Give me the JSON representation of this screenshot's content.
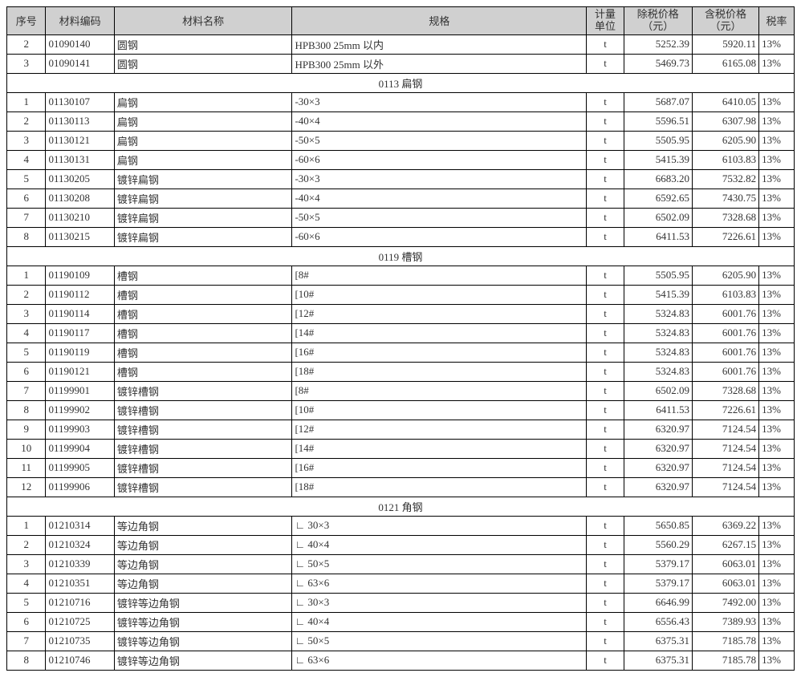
{
  "headers": {
    "seq": "序号",
    "code": "材料编码",
    "name": "材料名称",
    "spec": "规格",
    "unit_l1": "计量",
    "unit_l2": "单位",
    "price1_l1": "除税价格",
    "price1_l2": "（元）",
    "price2_l1": "含税价格",
    "price2_l2": "（元）",
    "tax": "税率"
  },
  "top_rows": [
    {
      "seq": "2",
      "code": "01090140",
      "name": "圆钢",
      "spec": "HPB300   25mm  以内",
      "unit": "t",
      "p1": "5252.39",
      "p2": "5920.11",
      "tax": "13%"
    },
    {
      "seq": "3",
      "code": "01090141",
      "name": "圆钢",
      "spec": "HPB300   25mm  以外",
      "unit": "t",
      "p1": "5469.73",
      "p2": "6165.08",
      "tax": "13%"
    }
  ],
  "sections": [
    {
      "title": "0113 扁钢",
      "rows": [
        {
          "seq": "1",
          "code": "01130107",
          "name": "扁钢",
          "spec": "-30×3",
          "unit": "t",
          "p1": "5687.07",
          "p2": "6410.05",
          "tax": "13%"
        },
        {
          "seq": "2",
          "code": "01130113",
          "name": "扁钢",
          "spec": "-40×4",
          "unit": "t",
          "p1": "5596.51",
          "p2": "6307.98",
          "tax": "13%"
        },
        {
          "seq": "3",
          "code": "01130121",
          "name": "扁钢",
          "spec": "-50×5",
          "unit": "t",
          "p1": "5505.95",
          "p2": "6205.90",
          "tax": "13%"
        },
        {
          "seq": "4",
          "code": "01130131",
          "name": "扁钢",
          "spec": "-60×6",
          "unit": "t",
          "p1": "5415.39",
          "p2": "6103.83",
          "tax": "13%"
        },
        {
          "seq": "5",
          "code": "01130205",
          "name": "镀锌扁钢",
          "spec": "-30×3",
          "unit": "t",
          "p1": "6683.20",
          "p2": "7532.82",
          "tax": "13%"
        },
        {
          "seq": "6",
          "code": "01130208",
          "name": "镀锌扁钢",
          "spec": "-40×4",
          "unit": "t",
          "p1": "6592.65",
          "p2": "7430.75",
          "tax": "13%"
        },
        {
          "seq": "7",
          "code": "01130210",
          "name": "镀锌扁钢",
          "spec": "-50×5",
          "unit": "t",
          "p1": "6502.09",
          "p2": "7328.68",
          "tax": "13%"
        },
        {
          "seq": "8",
          "code": "01130215",
          "name": "镀锌扁钢",
          "spec": "-60×6",
          "unit": "t",
          "p1": "6411.53",
          "p2": "7226.61",
          "tax": "13%"
        }
      ]
    },
    {
      "title": "0119 槽钢",
      "rows": [
        {
          "seq": "1",
          "code": "01190109",
          "name": "槽钢",
          "spec": "[8#",
          "unit": "t",
          "p1": "5505.95",
          "p2": "6205.90",
          "tax": "13%"
        },
        {
          "seq": "2",
          "code": "01190112",
          "name": "槽钢",
          "spec": "[10#",
          "unit": "t",
          "p1": "5415.39",
          "p2": "6103.83",
          "tax": "13%"
        },
        {
          "seq": "3",
          "code": "01190114",
          "name": "槽钢",
          "spec": "[12#",
          "unit": "t",
          "p1": "5324.83",
          "p2": "6001.76",
          "tax": "13%"
        },
        {
          "seq": "4",
          "code": "01190117",
          "name": "槽钢",
          "spec": "[14#",
          "unit": "t",
          "p1": "5324.83",
          "p2": "6001.76",
          "tax": "13%"
        },
        {
          "seq": "5",
          "code": "01190119",
          "name": "槽钢",
          "spec": "[16#",
          "unit": "t",
          "p1": "5324.83",
          "p2": "6001.76",
          "tax": "13%"
        },
        {
          "seq": "6",
          "code": "01190121",
          "name": "槽钢",
          "spec": "[18#",
          "unit": "t",
          "p1": "5324.83",
          "p2": "6001.76",
          "tax": "13%"
        },
        {
          "seq": "7",
          "code": "01199901",
          "name": "镀锌槽钢",
          "spec": "[8#",
          "unit": "t",
          "p1": "6502.09",
          "p2": "7328.68",
          "tax": "13%"
        },
        {
          "seq": "8",
          "code": "01199902",
          "name": "镀锌槽钢",
          "spec": "[10#",
          "unit": "t",
          "p1": "6411.53",
          "p2": "7226.61",
          "tax": "13%"
        },
        {
          "seq": "9",
          "code": "01199903",
          "name": "镀锌槽钢",
          "spec": "[12#",
          "unit": "t",
          "p1": "6320.97",
          "p2": "7124.54",
          "tax": "13%"
        },
        {
          "seq": "10",
          "code": "01199904",
          "name": "镀锌槽钢",
          "spec": "[14#",
          "unit": "t",
          "p1": "6320.97",
          "p2": "7124.54",
          "tax": "13%"
        },
        {
          "seq": "11",
          "code": "01199905",
          "name": "镀锌槽钢",
          "spec": "[16#",
          "unit": "t",
          "p1": "6320.97",
          "p2": "7124.54",
          "tax": "13%"
        },
        {
          "seq": "12",
          "code": "01199906",
          "name": "镀锌槽钢",
          "spec": "[18#",
          "unit": "t",
          "p1": "6320.97",
          "p2": "7124.54",
          "tax": "13%"
        }
      ]
    },
    {
      "title": "0121 角钢",
      "rows": [
        {
          "seq": "1",
          "code": "01210314",
          "name": "等边角钢",
          "spec": "∟ 30×3",
          "unit": "t",
          "p1": "5650.85",
          "p2": "6369.22",
          "tax": "13%"
        },
        {
          "seq": "2",
          "code": "01210324",
          "name": "等边角钢",
          "spec": "∟ 40×4",
          "unit": "t",
          "p1": "5560.29",
          "p2": "6267.15",
          "tax": "13%"
        },
        {
          "seq": "3",
          "code": "01210339",
          "name": "等边角钢",
          "spec": "∟ 50×5",
          "unit": "t",
          "p1": "5379.17",
          "p2": "6063.01",
          "tax": "13%"
        },
        {
          "seq": "4",
          "code": "01210351",
          "name": "等边角钢",
          "spec": "∟ 63×6",
          "unit": "t",
          "p1": "5379.17",
          "p2": "6063.01",
          "tax": "13%"
        },
        {
          "seq": "5",
          "code": "01210716",
          "name": "镀锌等边角钢",
          "spec": "∟ 30×3",
          "unit": "t",
          "p1": "6646.99",
          "p2": "7492.00",
          "tax": "13%"
        },
        {
          "seq": "6",
          "code": "01210725",
          "name": "镀锌等边角钢",
          "spec": "∟ 40×4",
          "unit": "t",
          "p1": "6556.43",
          "p2": "7389.93",
          "tax": "13%"
        },
        {
          "seq": "7",
          "code": "01210735",
          "name": "镀锌等边角钢",
          "spec": "∟ 50×5",
          "unit": "t",
          "p1": "6375.31",
          "p2": "7185.78",
          "tax": "13%"
        },
        {
          "seq": "8",
          "code": "01210746",
          "name": "镀锌等边角钢",
          "spec": "∟ 63×6",
          "unit": "t",
          "p1": "6375.31",
          "p2": "7185.78",
          "tax": "13%"
        }
      ]
    }
  ]
}
